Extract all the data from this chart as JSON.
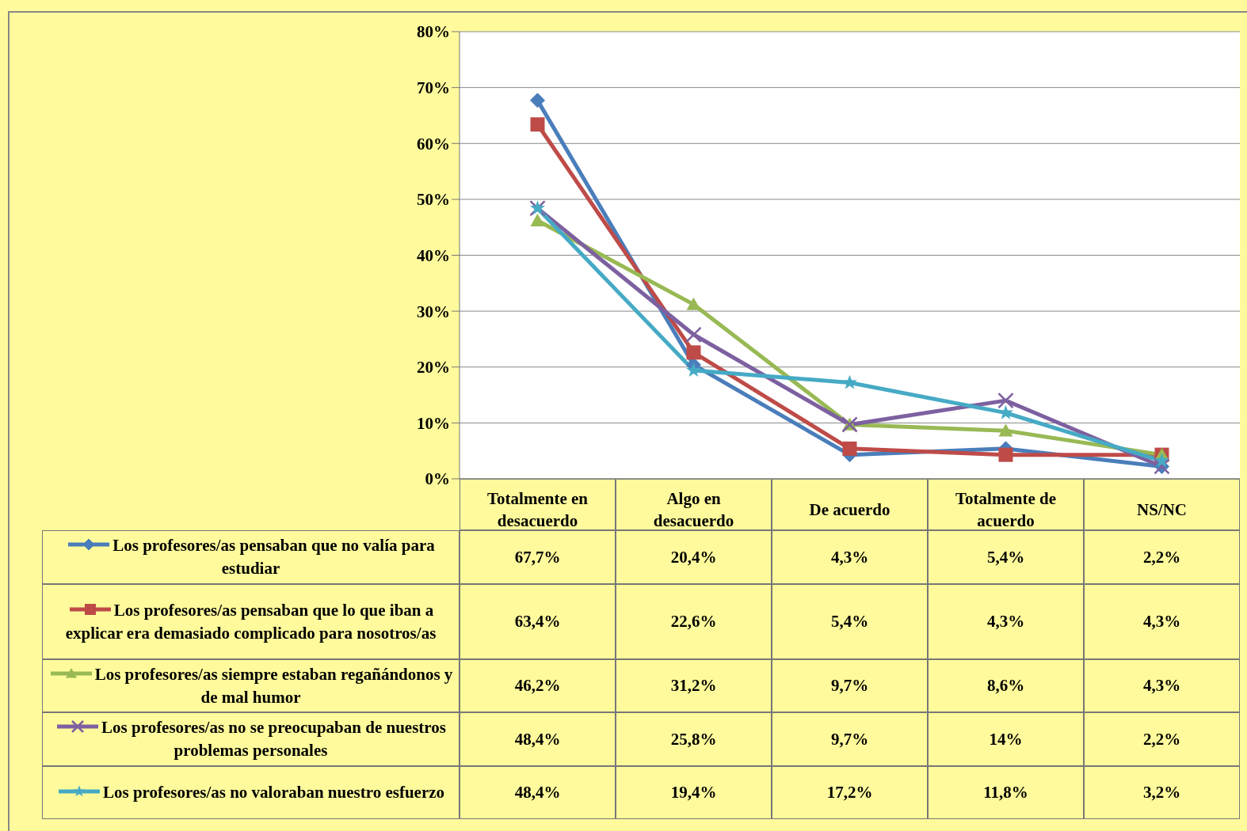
{
  "chart_data": {
    "type": "line",
    "categories": [
      "Totalmente en desacuerdo",
      "Algo en desacuerdo",
      "De acuerdo",
      "Totalmente de acuerdo",
      "NS/NC"
    ],
    "ylim": [
      0,
      80
    ],
    "yticks": [
      {
        "value": 0,
        "label": "0%"
      },
      {
        "value": 10,
        "label": "10%"
      },
      {
        "value": 20,
        "label": "20%"
      },
      {
        "value": 30,
        "label": "30%"
      },
      {
        "value": 40,
        "label": "40%"
      },
      {
        "value": 50,
        "label": "50%"
      },
      {
        "value": 60,
        "label": "60%"
      },
      {
        "value": 70,
        "label": "70%"
      },
      {
        "value": 80,
        "label": "80%"
      }
    ],
    "grid": "y",
    "legend": "bottom left",
    "line_style": "solid",
    "series": [
      {
        "name": "Los profesores/as pensaban que no valía para estudiar",
        "color": "#4a7ebb",
        "marker": "diamond",
        "values": [
          67.7,
          20.4,
          4.3,
          5.4,
          2.2
        ],
        "value_labels": [
          "67,7%",
          "20,4%",
          "4,3%",
          "5,4%",
          "2,2%"
        ]
      },
      {
        "name": "Los profesores/as pensaban que lo que iban a explicar era demasiado complicado para nosotros/as",
        "color": "#be4b48",
        "marker": "square",
        "values": [
          63.4,
          22.6,
          5.4,
          4.3,
          4.3
        ],
        "value_labels": [
          "63,4%",
          "22,6%",
          "5,4%",
          "4,3%",
          "4,3%"
        ]
      },
      {
        "name": "Los profesores/as siempre estaban regañándonos y de mal humor",
        "color": "#98b954",
        "marker": "triangle",
        "values": [
          46.2,
          31.2,
          9.7,
          8.6,
          4.3
        ],
        "value_labels": [
          "46,2%",
          "31,2%",
          "9,7%",
          "8,6%",
          "4,3%"
        ]
      },
      {
        "name": "Los profesores/as no se preocupaban de nuestros problemas personales",
        "color": "#7d60a0",
        "marker": "cross",
        "values": [
          48.4,
          25.8,
          9.7,
          14,
          2.2
        ],
        "value_labels": [
          "48,4%",
          "25,8%",
          "9,7%",
          "14%",
          "2,2%"
        ]
      },
      {
        "name": "Los profesores/as no valoraban nuestro esfuerzo",
        "color": "#46aac5",
        "marker": "star",
        "values": [
          48.4,
          19.4,
          17.2,
          11.8,
          3.2
        ],
        "value_labels": [
          "48,4%",
          "19,4%",
          "17,2%",
          "11,8%",
          "3,2%"
        ]
      }
    ]
  }
}
